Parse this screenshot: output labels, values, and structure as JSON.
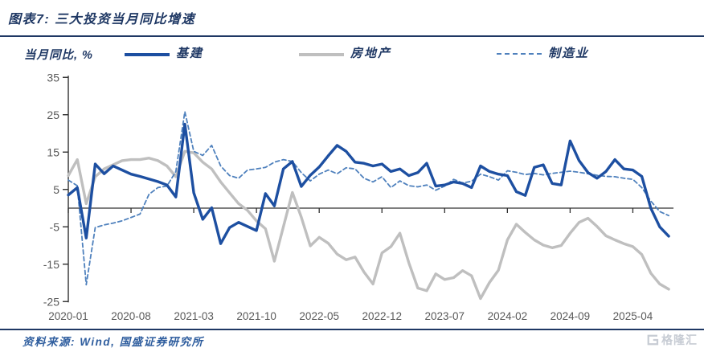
{
  "header": {
    "title": "图表7: 三大投资当月同比增速"
  },
  "legend": {
    "unit_label": "当月同比, %"
  },
  "footer": {
    "source": "资料来源: Wind, 国盛证券研究所",
    "logo_text": "格隆汇"
  },
  "colors": {
    "title_navy": "#1f3864",
    "infrastructure_blue": "#1d4fa1",
    "realestate_gray": "#bfbfbf",
    "manufacturing_blue": "#4f81bd",
    "axis_text": "#595959",
    "axis_line": "#303030",
    "source_blue": "#2e5d9e",
    "logo_gray": "#c7ccd4"
  },
  "chart_data": {
    "type": "line",
    "title": "三大投资当月同比增速",
    "xlabel": "",
    "ylabel": "当月同比, %",
    "x_start": "2020-01",
    "x_end": "2025-08",
    "x_tick_labels": [
      "2020-01",
      "2020-08",
      "2021-03",
      "2021-10",
      "2022-05",
      "2022-12",
      "2023-07",
      "2024-02",
      "2024-09",
      "2025-04"
    ],
    "x_tick_indices": [
      0,
      7,
      14,
      21,
      28,
      35,
      42,
      49,
      56,
      63
    ],
    "ylim": [
      -25,
      35
    ],
    "y_major_ticks": [
      35,
      25,
      15,
      5,
      -5,
      -15,
      -25
    ],
    "grid": false,
    "legend_position": "top",
    "series": [
      {
        "name": "基建",
        "style": "solid",
        "color": "#1d4fa1",
        "width": 3.4,
        "values": [
          3.5,
          5.5,
          -8.0,
          11.8,
          9.2,
          11.3,
          10.2,
          9.1,
          8.5,
          7.8,
          7.1,
          6.2,
          3.0,
          22.5,
          4.1,
          -3.0,
          0.1,
          -9.5,
          -5.2,
          -3.8,
          -4.9,
          -6.0,
          3.9,
          0.6,
          10.5,
          12.5,
          5.8,
          8.8,
          11.0,
          14.0,
          16.8,
          15.2,
          12.3,
          12.0,
          11.3,
          11.8,
          9.8,
          10.5,
          8.7,
          9.5,
          12.0,
          5.9,
          6.2,
          7.0,
          6.6,
          5.5,
          11.3,
          9.8,
          9.1,
          8.7,
          4.4,
          3.4,
          10.9,
          11.6,
          6.6,
          6.2,
          18.0,
          12.7,
          9.5,
          8.0,
          9.8,
          13.0,
          10.5,
          10.2,
          8.5,
          0.0,
          -5.0,
          -7.5
        ]
      },
      {
        "name": "房地产",
        "style": "solid",
        "color": "#bfbfbf",
        "width": 3.4,
        "values": [
          8.7,
          13.0,
          1.2,
          8.4,
          10.5,
          11.6,
          12.7,
          13.0,
          13.0,
          13.4,
          12.7,
          11.3,
          8.4,
          15.2,
          14.8,
          12.3,
          10.5,
          7.0,
          4.1,
          1.2,
          -0.6,
          -3.4,
          -5.5,
          -14.2,
          -5.0,
          4.2,
          -2.4,
          -10.1,
          -7.8,
          -9.4,
          -12.3,
          -13.8,
          -13.1,
          -17.1,
          -20.3,
          -12.0,
          -10.3,
          -6.7,
          -14.6,
          -21.4,
          -22.1,
          -17.6,
          -19.1,
          -18.6,
          -16.7,
          -18.1,
          -24.2,
          -19.9,
          -16.6,
          -8.5,
          -4.3,
          -6.5,
          -8.5,
          -9.9,
          -10.6,
          -10.0,
          -6.7,
          -3.8,
          -2.7,
          -4.9,
          -7.4,
          -8.5,
          -9.5,
          -10.3,
          -12.4,
          -17.4,
          -20.3,
          -21.7
        ]
      },
      {
        "name": "制造业",
        "style": "dashed",
        "color": "#4f81bd",
        "width": 1.8,
        "values": [
          7.5,
          6.0,
          -20.5,
          -5.2,
          -4.5,
          -4.0,
          -3.4,
          -2.5,
          -1.6,
          3.7,
          5.5,
          5.9,
          9.8,
          25.8,
          15.2,
          14.1,
          16.8,
          11.3,
          8.7,
          8.0,
          10.2,
          10.5,
          10.9,
          12.3,
          13.0,
          12.5,
          9.5,
          7.3,
          9.1,
          10.2,
          9.2,
          10.8,
          10.5,
          8.0,
          7.0,
          8.4,
          5.5,
          7.3,
          6.0,
          5.7,
          6.2,
          4.8,
          5.9,
          7.7,
          6.7,
          7.2,
          9.1,
          8.4,
          7.5,
          10.0,
          9.6,
          9.0,
          9.3,
          8.9,
          9.3,
          9.6,
          9.9,
          9.6,
          9.2,
          8.8,
          8.5,
          8.4,
          8.0,
          7.7,
          5.5,
          1.9,
          -0.9,
          -2.0
        ]
      }
    ]
  }
}
